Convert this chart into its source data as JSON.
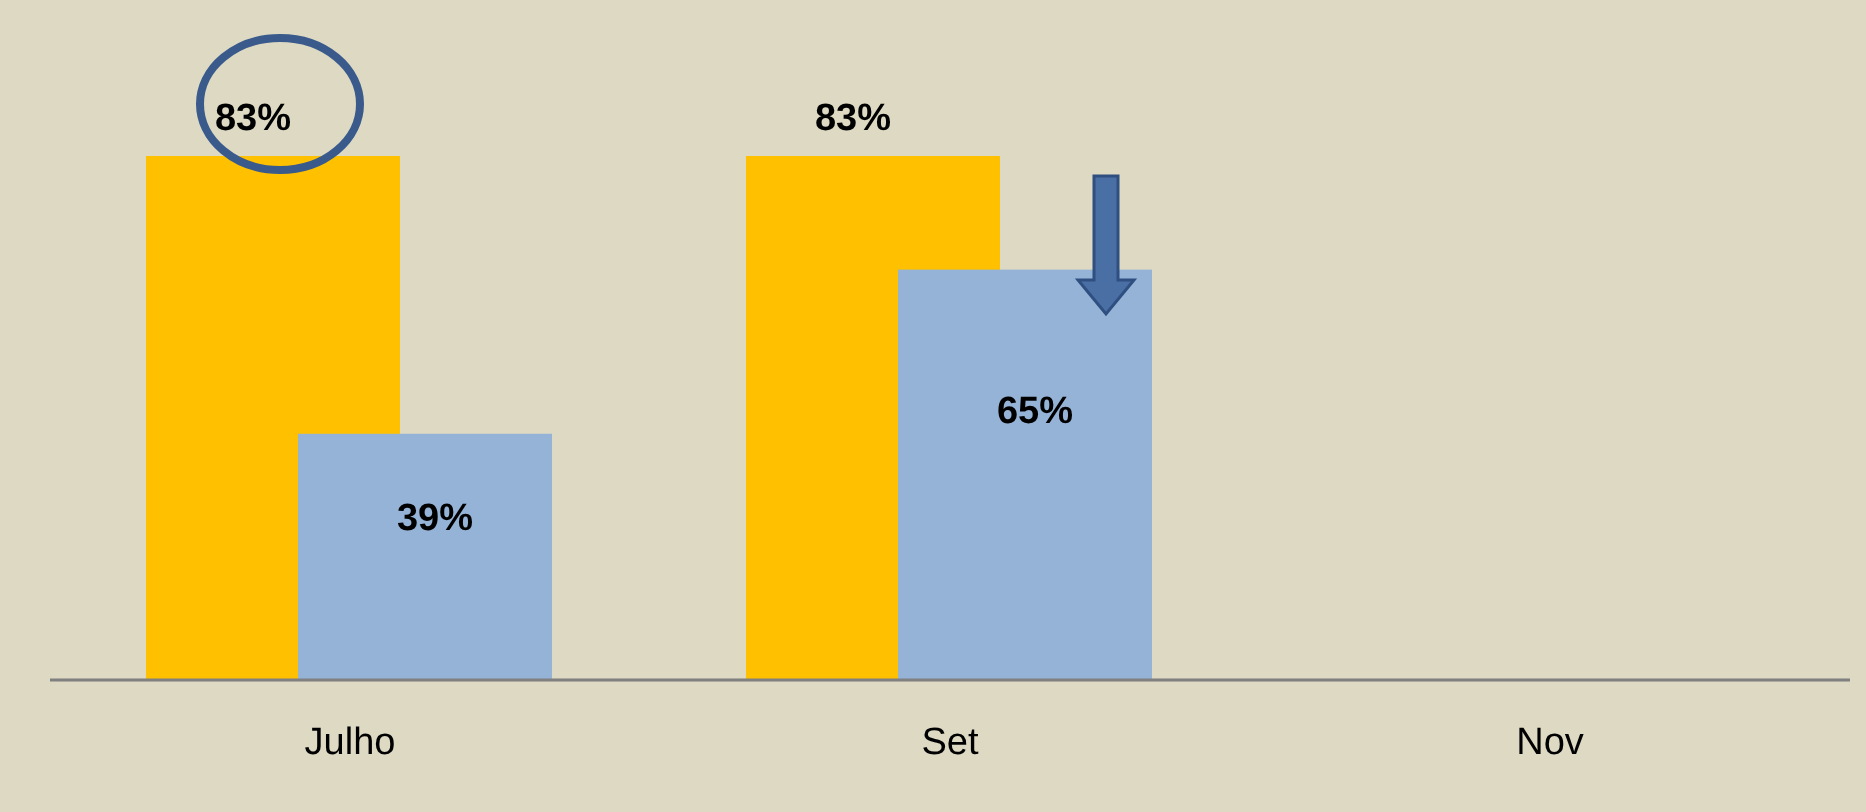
{
  "chart_data": {
    "type": "bar",
    "categories": [
      "Julho",
      "Set",
      "Nov"
    ],
    "series": [
      {
        "color": "#ffc000",
        "values": [
          83,
          83,
          null
        ],
        "value_labels": [
          "83%",
          "83%",
          null
        ]
      },
      {
        "color": "#95b3d7",
        "values": [
          39,
          65,
          null
        ],
        "value_labels": [
          "39%",
          "65%",
          null
        ]
      }
    ]
  }
}
